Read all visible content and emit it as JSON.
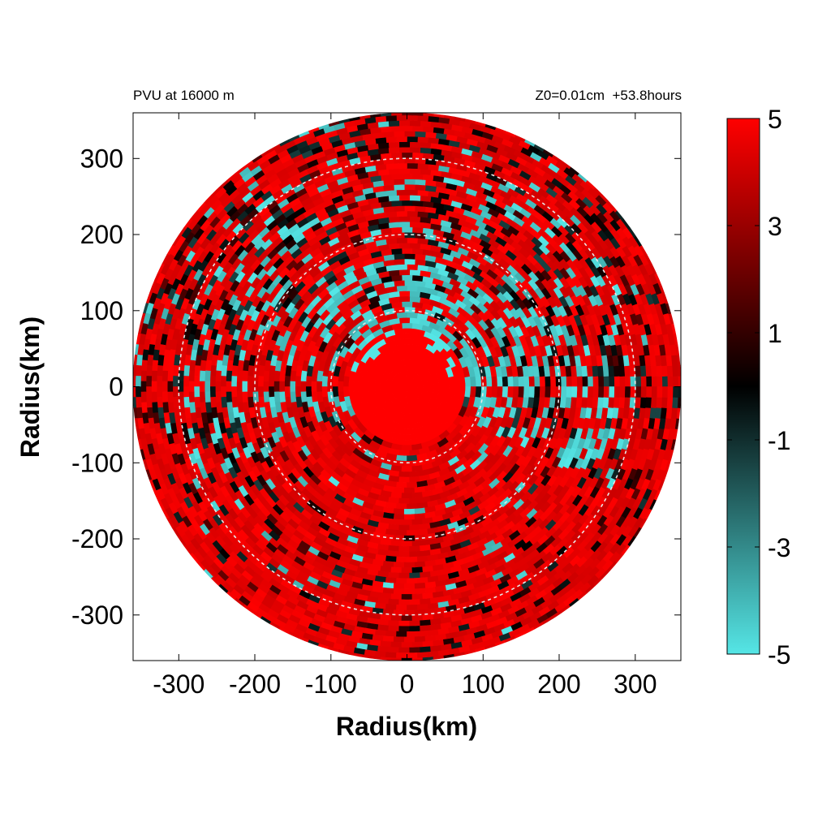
{
  "chart_data": {
    "type": "heatmap",
    "title_left": "PVU at 16000 m",
    "title_right": "Z0=0.01cm  +53.8hours",
    "xlabel": "Radius(km)",
    "ylabel": "Radius(km)",
    "xlim": [
      -360,
      360
    ],
    "ylim": [
      -360,
      360
    ],
    "xticks": [
      "-300",
      "-200",
      "-100",
      "0",
      "100",
      "200",
      "300"
    ],
    "yticks": [
      "300",
      "200",
      "100",
      "0",
      "-100",
      "-200",
      "-300"
    ],
    "domain_radius_km": 360,
    "range_rings_km": [
      100,
      200,
      300
    ],
    "colorbar": {
      "min": -5,
      "max": 5,
      "ticks": [
        "5",
        "3",
        "1",
        "-1",
        "-3",
        "-5"
      ],
      "colors": [
        "#55e6e6",
        "#000000",
        "#ff0000"
      ]
    },
    "field_description_regions": {
      "core_r_lt_80km": 5,
      "inner_ring_80_to_170km": "mixed, cyan (-5) patches mostly north and east",
      "middle_ring_170_to_300km": "mixed red and dark/cyan patches",
      "outer_ring_gt_300km": "mostly red with dark streaks",
      "south_sector": "mostly red (5)"
    }
  }
}
